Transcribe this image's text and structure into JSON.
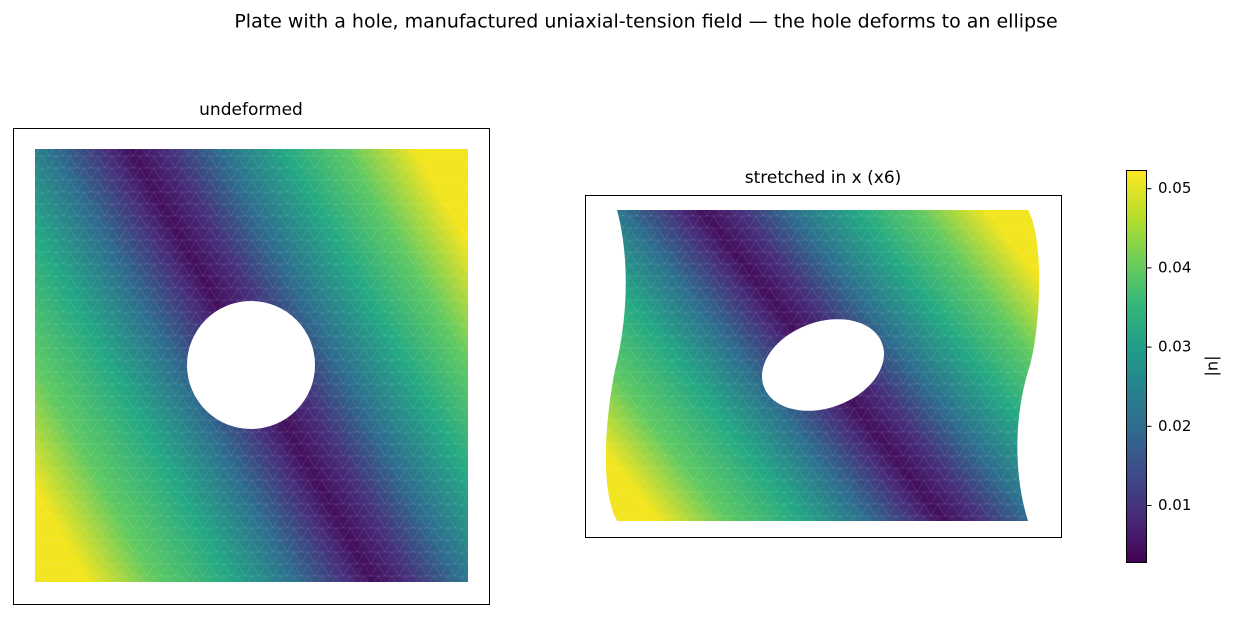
{
  "chart_data": {
    "type": "tripcolor",
    "title": "Plate with a hole, manufactured uniaxial-tension field — the hole deforms to an ellipse",
    "panels": [
      {
        "title": "undeformed"
      },
      {
        "title": "stretched in x (x6)"
      }
    ],
    "colorbar": {
      "label": "|u|",
      "lim": [
        0.0028,
        0.0523
      ],
      "ticks": [
        0.01,
        0.02,
        0.03,
        0.04,
        0.05
      ],
      "colormap": "viridis"
    }
  }
}
